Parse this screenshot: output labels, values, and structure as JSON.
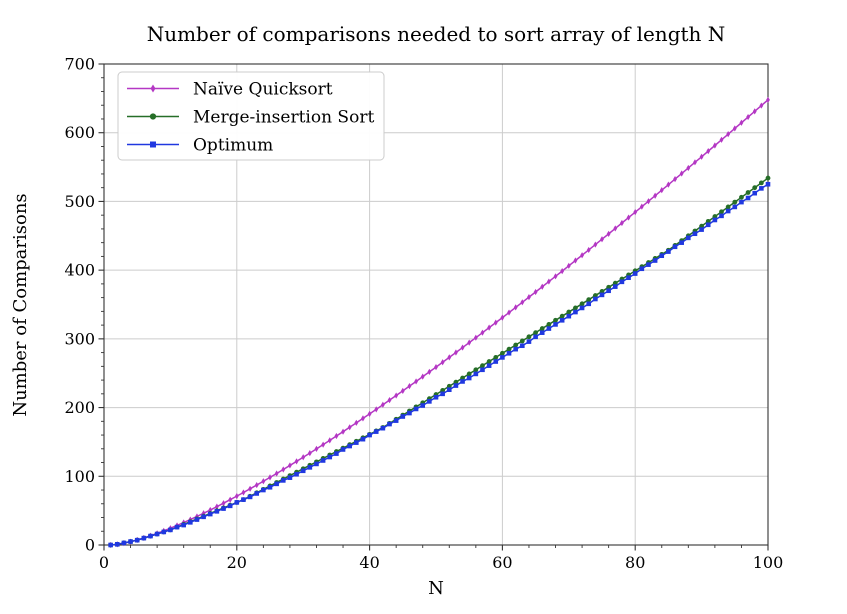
{
  "figure": {
    "title": "Number of comparisons needed to sort array of length N",
    "xlabel": "N",
    "ylabel": "Number of Comparisons"
  },
  "chart_data": {
    "type": "line",
    "title": "Number of comparisons needed to sort array of length N",
    "xlabel": "N",
    "ylabel": "Number of Comparisons",
    "xlim": [
      0,
      100
    ],
    "ylim": [
      0,
      700
    ],
    "x_major_ticks": [
      0,
      20,
      40,
      60,
      80,
      100
    ],
    "y_major_ticks": [
      0,
      100,
      200,
      300,
      400,
      500,
      600,
      700
    ],
    "x_minor_step": 4,
    "y_minor_step": 20,
    "grid": "major",
    "legend_position": "upper-left",
    "style": {
      "grid_color": "#cccccc",
      "spine_color": "#333333",
      "tick_color": "#333333",
      "background": "#ffffff",
      "legend_border": "#cccccc",
      "legend_fill": "#ffffff"
    },
    "x": [
      1,
      2,
      3,
      4,
      5,
      6,
      7,
      8,
      9,
      10,
      11,
      12,
      13,
      14,
      15,
      16,
      17,
      18,
      19,
      20,
      21,
      22,
      23,
      24,
      25,
      26,
      27,
      28,
      29,
      30,
      31,
      32,
      33,
      34,
      35,
      36,
      37,
      38,
      39,
      40,
      41,
      42,
      43,
      44,
      45,
      46,
      47,
      48,
      49,
      50,
      51,
      52,
      53,
      54,
      55,
      56,
      57,
      58,
      59,
      60,
      61,
      62,
      63,
      64,
      65,
      66,
      67,
      68,
      69,
      70,
      71,
      72,
      73,
      74,
      75,
      76,
      77,
      78,
      79,
      80,
      81,
      82,
      83,
      84,
      85,
      86,
      87,
      88,
      89,
      90,
      91,
      92,
      93,
      94,
      95,
      96,
      97,
      98,
      99,
      100
    ],
    "series": [
      {
        "name": "Naïve Quicksort",
        "color": "#b437c4",
        "marker": "thin-diamond",
        "values": [
          0,
          1,
          2.7,
          4.8,
          7.4,
          10.3,
          13.5,
          16.9,
          20.6,
          24.4,
          28.5,
          32.7,
          37,
          41.5,
          46.2,
          50.9,
          55.8,
          60.8,
          65.9,
          71.1,
          76.4,
          81.8,
          87.2,
          92.8,
          98.4,
          104.1,
          109.9,
          115.8,
          121.7,
          127.7,
          133.7,
          139.9,
          146,
          152.3,
          158.6,
          164.9,
          171.3,
          177.8,
          184.3,
          190.8,
          197.4,
          204.1,
          210.8,
          217.5,
          224.3,
          231.2,
          238,
          245,
          251.9,
          258.9,
          266,
          273,
          280.1,
          287.3,
          294.5,
          301.7,
          309,
          316.3,
          323.6,
          330.9,
          338.3,
          345.8,
          353.2,
          360.7,
          368.2,
          375.8,
          383.4,
          391,
          398.6,
          406.3,
          414,
          421.7,
          429.4,
          437.2,
          445,
          452.8,
          460.7,
          468.6,
          476.5,
          484.4,
          492.4,
          500.3,
          508.3,
          516.4,
          524.4,
          532.5,
          540.6,
          548.7,
          556.9,
          565,
          573.2,
          581.4,
          589.7,
          597.9,
          606.2,
          614.5,
          622.8,
          631.1,
          639.5,
          647.8
        ]
      },
      {
        "name": "Merge-insertion Sort",
        "color": "#266e28",
        "marker": "circle",
        "values": [
          0,
          1,
          3,
          5,
          7,
          10,
          13,
          16,
          19,
          22,
          26,
          30,
          34,
          38,
          42,
          46,
          50,
          54,
          58,
          62,
          66,
          71,
          76,
          81,
          86,
          91,
          96,
          101,
          106,
          111,
          116,
          121,
          126,
          131,
          136,
          141,
          146,
          151,
          156,
          161,
          166,
          171,
          177,
          183,
          189,
          195,
          201,
          207,
          213,
          219,
          225,
          231,
          237,
          243,
          249,
          255,
          261,
          267,
          273,
          279,
          285,
          291,
          297,
          303,
          309,
          315,
          321,
          327,
          333,
          339,
          345,
          351,
          357,
          363,
          369,
          375,
          381,
          387,
          393,
          399,
          405,
          411,
          417,
          423,
          429,
          436,
          443,
          450,
          457,
          464,
          471,
          478,
          485,
          492,
          499,
          506,
          513,
          520,
          527,
          534
        ]
      },
      {
        "name": "Optimum",
        "color": "#2038e0",
        "marker": "square",
        "values": [
          0,
          1,
          3,
          5,
          7,
          10,
          13,
          16,
          19,
          22,
          26,
          29,
          33,
          37,
          41,
          45,
          49,
          53,
          57,
          62,
          66,
          70,
          75,
          80,
          84,
          89,
          94,
          98,
          103,
          108,
          113,
          118,
          123,
          128,
          133,
          139,
          144,
          149,
          154,
          160,
          165,
          170,
          176,
          181,
          187,
          192,
          198,
          203,
          209,
          215,
          220,
          226,
          232,
          238,
          243,
          249,
          255,
          261,
          267,
          273,
          279,
          285,
          290,
          296,
          303,
          309,
          315,
          321,
          327,
          333,
          339,
          345,
          351,
          358,
          364,
          370,
          376,
          383,
          389,
          395,
          402,
          408,
          414,
          421,
          427,
          434,
          440,
          447,
          453,
          459,
          466,
          473,
          479,
          486,
          492,
          499,
          505,
          512,
          519,
          525
        ]
      }
    ]
  }
}
